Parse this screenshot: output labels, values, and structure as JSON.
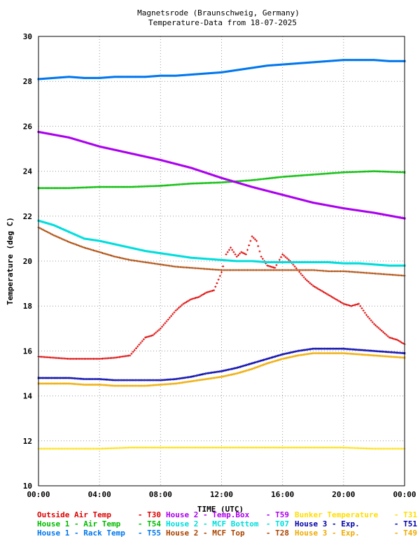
{
  "chart_data": {
    "type": "scatter",
    "title": "Magnetsrode (Braunschweig, Germany)",
    "subtitle": "Temperature-Data from 18-07-2025",
    "xlabel": "TIME (UTC)",
    "ylabel": "Temperature (deg C)",
    "xlim": [
      0,
      24
    ],
    "ylim": [
      10,
      30
    ],
    "x_ticks": [
      "00:00",
      "04:00",
      "08:00",
      "12:00",
      "16:00",
      "20:00",
      "00:00"
    ],
    "y_ticks": [
      "10",
      "12",
      "14",
      "16",
      "18",
      "20",
      "22",
      "24",
      "26",
      "28",
      "30"
    ],
    "grid": true,
    "legend_placement": "bottom",
    "series": [
      {
        "name": "Outside Air Temp",
        "code": "T30",
        "color": "#dd0000",
        "marker": "plus",
        "x": [
          0,
          1,
          2,
          3,
          4,
          5,
          6,
          6.5,
          7,
          7.5,
          8,
          8.5,
          9,
          9.5,
          10,
          10.5,
          11,
          11.5,
          12,
          12.3,
          12.6,
          13,
          13.3,
          13.6,
          14,
          14.3,
          14.6,
          15,
          15.5,
          16,
          16.5,
          17,
          17.5,
          18,
          18.5,
          19,
          19.5,
          20,
          20.5,
          21,
          21.5,
          22,
          22.5,
          23,
          23.5,
          24
        ],
        "values": [
          15.75,
          15.7,
          15.65,
          15.65,
          15.65,
          15.7,
          15.8,
          16.2,
          16.6,
          16.7,
          17.0,
          17.4,
          17.8,
          18.1,
          18.3,
          18.4,
          18.6,
          18.7,
          19.5,
          20.3,
          20.6,
          20.2,
          20.4,
          20.3,
          21.1,
          20.9,
          20.2,
          19.8,
          19.7,
          20.3,
          20.0,
          19.6,
          19.2,
          18.9,
          18.7,
          18.5,
          18.3,
          18.1,
          18.0,
          18.1,
          17.6,
          17.2,
          16.9,
          16.6,
          16.5,
          16.3
        ]
      },
      {
        "name": "House 1 - Air  Temp",
        "code": "T54",
        "color": "#00bb00",
        "marker": "cross",
        "x": [
          0,
          2,
          4,
          6,
          8,
          10,
          12,
          14,
          16,
          18,
          20,
          22,
          24
        ],
        "values": [
          23.25,
          23.25,
          23.3,
          23.3,
          23.35,
          23.45,
          23.5,
          23.6,
          23.75,
          23.85,
          23.95,
          24.0,
          23.95
        ]
      },
      {
        "name": "House 1 - Rack Temp",
        "code": "T55",
        "color": "#0077ee",
        "marker": "square",
        "x": [
          0,
          1,
          2,
          3,
          4,
          5,
          6,
          7,
          8,
          9,
          10,
          11,
          12,
          13,
          14,
          15,
          16,
          17,
          18,
          19,
          20,
          21,
          22,
          23,
          24
        ],
        "values": [
          28.1,
          28.15,
          28.2,
          28.15,
          28.15,
          28.2,
          28.2,
          28.2,
          28.25,
          28.25,
          28.3,
          28.35,
          28.4,
          28.5,
          28.6,
          28.7,
          28.75,
          28.8,
          28.85,
          28.9,
          28.95,
          28.95,
          28.95,
          28.9,
          28.9
        ]
      },
      {
        "name": "House 2 - Temp.Box",
        "code": "T59",
        "color": "#aa00ee",
        "marker": "square",
        "x": [
          0,
          2,
          4,
          6,
          8,
          10,
          12,
          14,
          16,
          18,
          20,
          22,
          24
        ],
        "values": [
          25.75,
          25.5,
          25.1,
          24.8,
          24.5,
          24.15,
          23.7,
          23.3,
          22.95,
          22.6,
          22.35,
          22.15,
          21.9
        ]
      },
      {
        "name": "House 2 - MCF Bottom",
        "code": "T07",
        "color": "#00dddd",
        "marker": "square",
        "x": [
          0,
          1,
          2,
          3,
          4,
          5,
          6,
          7,
          8,
          9,
          10,
          11,
          12,
          13,
          14,
          15,
          16,
          17,
          18,
          19,
          20,
          21,
          22,
          23,
          24
        ],
        "values": [
          21.8,
          21.6,
          21.3,
          21.0,
          20.9,
          20.75,
          20.6,
          20.45,
          20.35,
          20.25,
          20.15,
          20.1,
          20.05,
          20.0,
          20.0,
          19.95,
          19.95,
          19.95,
          19.95,
          19.95,
          19.9,
          19.9,
          19.85,
          19.8,
          19.8
        ]
      },
      {
        "name": "House 2 - MCF Top",
        "code": "T28",
        "color": "#aa4400",
        "marker": "plus",
        "x": [
          0,
          1,
          2,
          3,
          4,
          5,
          6,
          7,
          8,
          9,
          10,
          11,
          12,
          13,
          14,
          15,
          16,
          17,
          18,
          19,
          20,
          21,
          22,
          23,
          24
        ],
        "values": [
          21.5,
          21.15,
          20.85,
          20.6,
          20.4,
          20.2,
          20.05,
          19.95,
          19.85,
          19.75,
          19.7,
          19.65,
          19.6,
          19.6,
          19.6,
          19.6,
          19.6,
          19.6,
          19.6,
          19.55,
          19.55,
          19.5,
          19.45,
          19.4,
          19.35
        ]
      },
      {
        "name": "Bunker Temperature",
        "code": "T31",
        "color": "#ffdd00",
        "marker": "plus",
        "x": [
          0,
          2,
          4,
          6,
          8,
          10,
          12,
          14,
          16,
          18,
          20,
          22,
          24
        ],
        "values": [
          11.65,
          11.65,
          11.65,
          11.7,
          11.7,
          11.7,
          11.7,
          11.7,
          11.7,
          11.7,
          11.7,
          11.65,
          11.65
        ]
      },
      {
        "name": "House 3 - Exp.",
        "code": "T51",
        "color": "#0000aa",
        "marker": "cross",
        "x": [
          0,
          1,
          2,
          3,
          4,
          5,
          6,
          7,
          8,
          9,
          10,
          11,
          12,
          13,
          14,
          15,
          16,
          17,
          18,
          19,
          20,
          21,
          22,
          23,
          24
        ],
        "values": [
          14.8,
          14.8,
          14.8,
          14.75,
          14.75,
          14.7,
          14.7,
          14.7,
          14.7,
          14.75,
          14.85,
          15.0,
          15.1,
          15.25,
          15.45,
          15.65,
          15.85,
          16.0,
          16.1,
          16.1,
          16.1,
          16.05,
          16.0,
          15.95,
          15.9
        ]
      },
      {
        "name": "House 3 - Exp.",
        "code": "T49",
        "color": "#eeaa00",
        "marker": "cross",
        "x": [
          0,
          1,
          2,
          3,
          4,
          5,
          6,
          7,
          8,
          9,
          10,
          11,
          12,
          13,
          14,
          15,
          16,
          17,
          18,
          19,
          20,
          21,
          22,
          23,
          24
        ],
        "values": [
          14.55,
          14.55,
          14.55,
          14.5,
          14.5,
          14.45,
          14.45,
          14.45,
          14.5,
          14.55,
          14.65,
          14.75,
          14.85,
          15.0,
          15.2,
          15.45,
          15.65,
          15.8,
          15.9,
          15.9,
          15.9,
          15.85,
          15.8,
          15.75,
          15.7
        ]
      }
    ]
  }
}
